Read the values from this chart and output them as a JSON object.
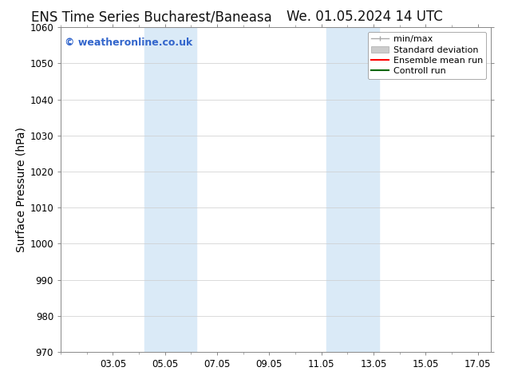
{
  "title_left": "ENS Time Series Bucharest/Baneasa",
  "title_right": "We. 01.05.2024 14 UTC",
  "ylabel": "Surface Pressure (hPa)",
  "ylim": [
    970,
    1060
  ],
  "yticks": [
    970,
    980,
    990,
    1000,
    1010,
    1020,
    1030,
    1040,
    1050,
    1060
  ],
  "xlim": [
    1.0,
    17.5
  ],
  "xtick_labels": [
    "03.05",
    "05.05",
    "07.05",
    "09.05",
    "11.05",
    "13.05",
    "15.05",
    "17.05"
  ],
  "xtick_positions": [
    3,
    5,
    7,
    9,
    11,
    13,
    15,
    17
  ],
  "shaded_bands": [
    {
      "x_start": 4.2,
      "x_end": 6.2,
      "color": "#daeaf7"
    },
    {
      "x_start": 11.2,
      "x_end": 13.2,
      "color": "#daeaf7"
    }
  ],
  "watermark_text": "© weatheronline.co.uk",
  "watermark_color": "#3366cc",
  "legend_entries": [
    {
      "label": "min/max",
      "color": "#aaaaaa"
    },
    {
      "label": "Standard deviation",
      "color": "#cccccc"
    },
    {
      "label": "Ensemble mean run",
      "color": "red"
    },
    {
      "label": "Controll run",
      "color": "green"
    }
  ],
  "bg_color": "#ffffff",
  "spine_color": "#888888",
  "grid_color": "#cccccc",
  "title_fontsize": 12,
  "tick_fontsize": 8.5,
  "ylabel_fontsize": 10,
  "legend_fontsize": 8
}
